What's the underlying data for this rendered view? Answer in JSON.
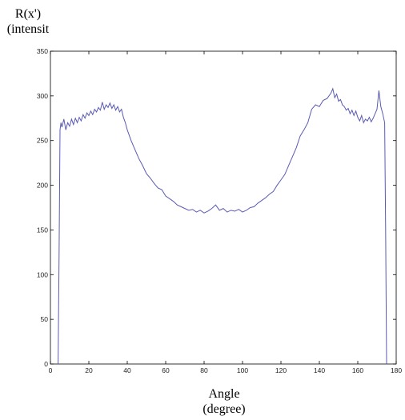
{
  "chart_data": {
    "type": "line",
    "xlabel": "Angle\n(degree)",
    "ylabel": "R(x')\n(intensit",
    "xlim": [
      0,
      180
    ],
    "ylim": [
      0,
      350
    ],
    "xticks": [
      0,
      20,
      40,
      60,
      80,
      100,
      120,
      140,
      160,
      180
    ],
    "yticks": [
      0,
      50,
      100,
      150,
      200,
      250,
      300,
      350
    ],
    "grid": false,
    "line_color": "#5a5ab4",
    "series": [
      {
        "x": [
          4,
          4.5,
          5,
          5.5,
          6,
          7,
          8,
          9,
          10,
          11,
          12,
          13,
          14,
          15,
          16,
          17,
          18,
          19,
          20,
          21,
          22,
          23,
          24,
          25,
          26,
          27,
          28,
          29,
          30,
          31,
          32,
          33,
          34,
          35,
          36,
          37,
          38,
          39,
          40,
          42,
          44,
          46,
          48,
          50,
          52,
          54,
          56,
          58,
          60,
          62,
          64,
          66,
          68,
          70,
          72,
          74,
          76,
          78,
          80,
          82,
          84,
          86,
          88,
          90,
          92,
          94,
          96,
          98,
          100,
          102,
          104,
          106,
          108,
          110,
          112,
          114,
          116,
          118,
          120,
          122,
          124,
          126,
          128,
          130,
          132,
          134,
          136,
          138,
          140,
          142,
          144,
          146,
          147,
          148,
          149,
          150,
          151,
          152,
          153,
          154,
          155,
          156,
          157,
          158,
          159,
          160,
          161,
          162,
          163,
          164,
          165,
          166,
          167,
          168,
          169,
          170,
          171,
          172,
          173,
          174,
          174.5,
          175
        ],
        "values": [
          0,
          120,
          262,
          270,
          265,
          274,
          262,
          270,
          266,
          274,
          268,
          275,
          270,
          276,
          272,
          279,
          275,
          281,
          278,
          283,
          279,
          285,
          282,
          287,
          284,
          293,
          285,
          290,
          287,
          292,
          286,
          290,
          284,
          288,
          282,
          285,
          276,
          270,
          262,
          250,
          240,
          230,
          222,
          213,
          208,
          202,
          197,
          195,
          188,
          185,
          182,
          178,
          176,
          174,
          172,
          173,
          170,
          172,
          169,
          171,
          174,
          178,
          172,
          174,
          170,
          172,
          171,
          173,
          170,
          172,
          175,
          176,
          180,
          183,
          186,
          190,
          193,
          200,
          206,
          212,
          222,
          232,
          242,
          255,
          262,
          270,
          285,
          290,
          288,
          295,
          297,
          303,
          308,
          298,
          302,
          294,
          296,
          290,
          288,
          284,
          286,
          280,
          284,
          278,
          283,
          276,
          272,
          278,
          270,
          274,
          272,
          276,
          271,
          275,
          280,
          285,
          306,
          288,
          280,
          270,
          150,
          0
        ]
      }
    ]
  }
}
